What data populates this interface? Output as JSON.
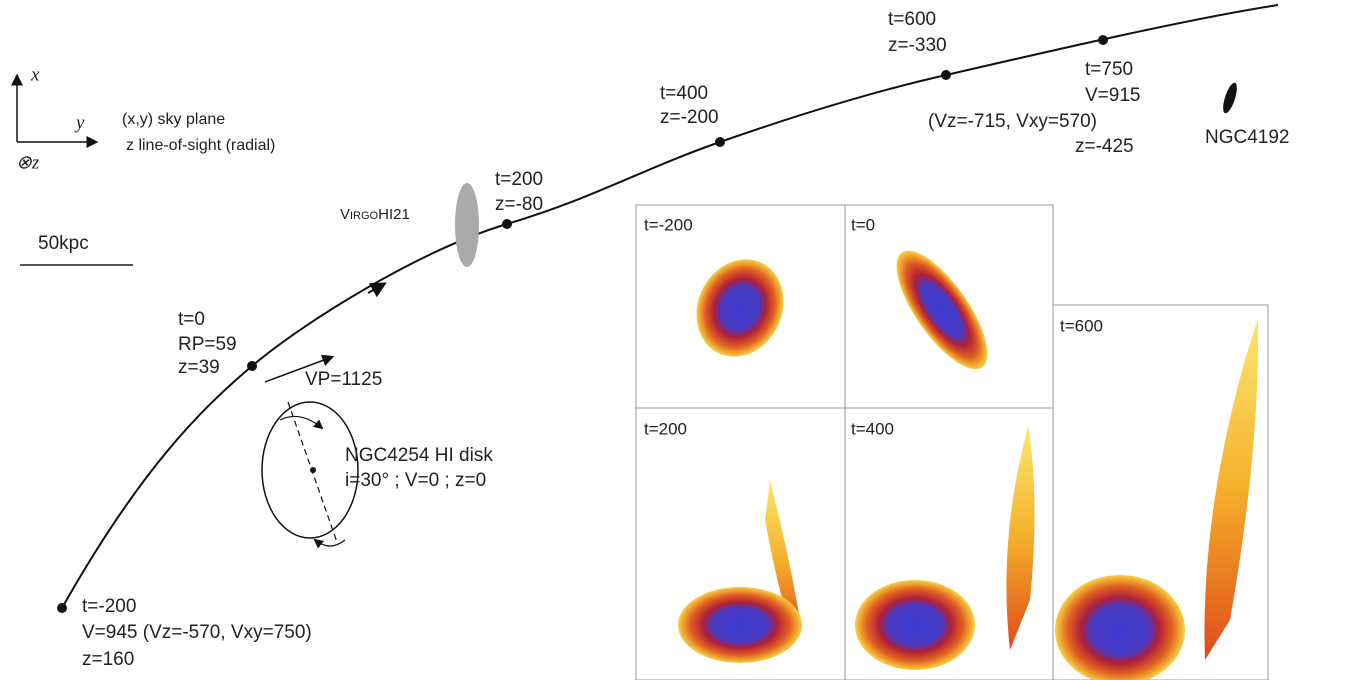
{
  "axes_icon": {
    "x": "x",
    "y": "y",
    "z": "⊗z"
  },
  "legend": [
    "(x,y) sky plane",
    "z line-of-sight (radial)"
  ],
  "scale_bar": "50kpc",
  "objects": {
    "virgohi21": "VirgoHI21",
    "ngc4192": "NGC4192"
  },
  "trajectory_points": [
    {
      "lines": [
        "t=-200",
        "V=945 (Vz=-570, Vxy=750)",
        "z=160"
      ]
    },
    {
      "lines": [
        "t=0",
        "RP=59",
        "z=39"
      ]
    },
    {
      "lines": [
        "t=200",
        "z=-80"
      ]
    },
    {
      "lines": [
        "t=400",
        "z=-200"
      ]
    },
    {
      "lines": [
        "t=600",
        "z=-330"
      ]
    },
    {
      "lines": [
        "t=750",
        "V=915",
        "(Vz=-715, Vxy=570)",
        "z=-425"
      ]
    }
  ],
  "velocity": "VP=1125",
  "disk": [
    "NGC4254 HI disk",
    "i=30° ; V=0 ; z=0"
  ],
  "panels": [
    "t=-200",
    "t=0",
    "t=200",
    "t=400",
    "t=600"
  ]
}
